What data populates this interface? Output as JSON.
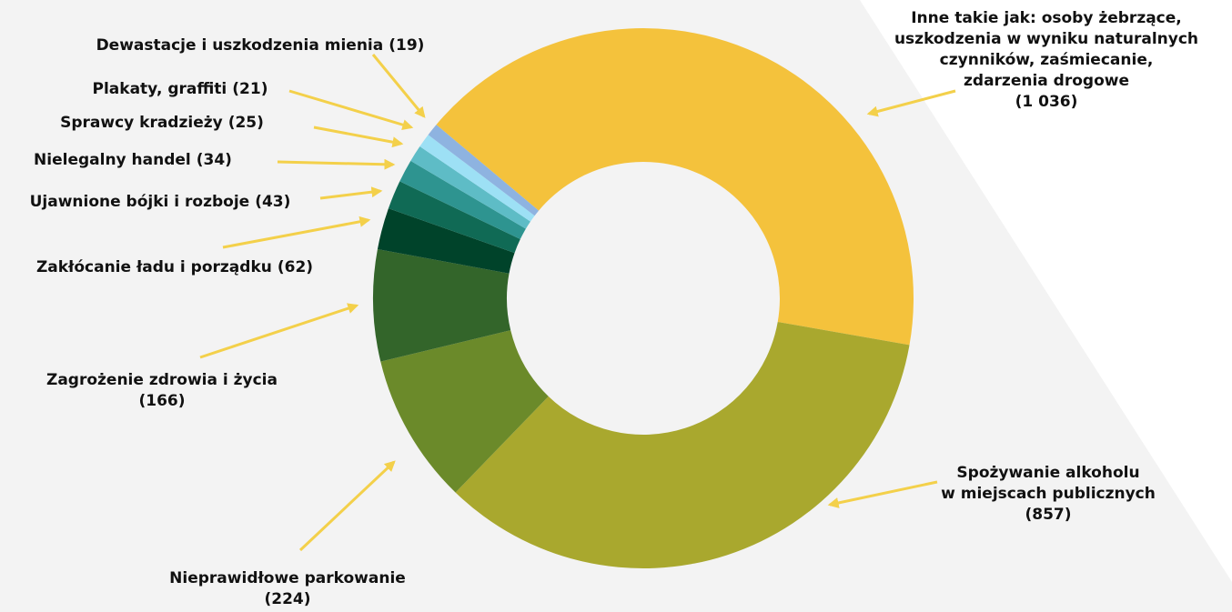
{
  "chart_data": {
    "type": "donut",
    "categories": [
      "Inne takie jak: osoby żebrzące,\nuszkodzenia w wyniku naturalnych\nczynników, zaśmiecanie,\nzdarzenia drogowe",
      "Spożywanie alkoholu\nw miejscach publicznych",
      "Nieprawidłowe parkowanie",
      "Zagrożenie zdrowia i życia",
      "Zakłócanie ładu i porządku",
      "Ujawnione bójki i rozboje",
      "Nielegalny handel",
      "Sprawcy kradzieży",
      "Plakaty, graffiti",
      "Dewastacje i uszkodzenia mienia"
    ],
    "values": [
      1036,
      857,
      224,
      166,
      62,
      43,
      34,
      25,
      21,
      19
    ],
    "value_labels": [
      "(1 036)",
      "(857)",
      "(224)",
      "(166)",
      "(62)",
      "(43)",
      "(34)",
      "(25)",
      "(21)",
      "(19)"
    ],
    "colors": [
      "#f4c23c",
      "#a9a82e",
      "#6b8a2a",
      "#33652a",
      "#00432a",
      "#106a55",
      "#2e9490",
      "#5ebcc6",
      "#9de0f5",
      "#8eb3e0"
    ]
  }
}
